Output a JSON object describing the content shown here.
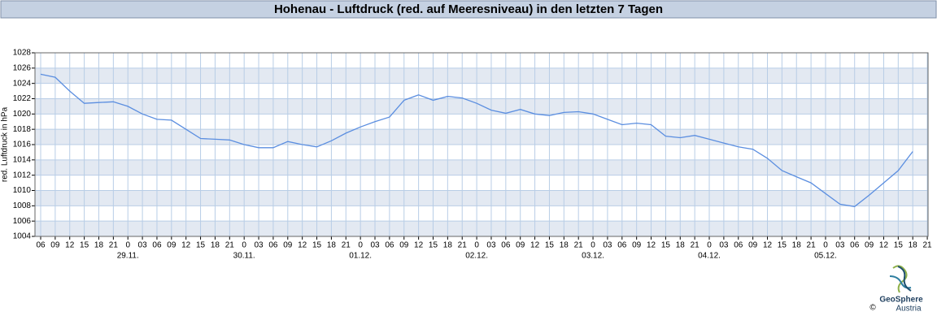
{
  "chart_data": {
    "type": "line",
    "title": "Hohenau - Luftdruck (red. auf Meeresniveau) in den letzten 7 Tagen",
    "y_label": "red. Luftdruck in hPa",
    "categories": [
      "06",
      "09",
      "12",
      "15",
      "18",
      "21",
      "0",
      "03",
      "06",
      "09",
      "12",
      "15",
      "18",
      "21",
      "0",
      "03",
      "06",
      "09",
      "12",
      "15",
      "18",
      "21",
      "0",
      "03",
      "06",
      "09",
      "12",
      "15",
      "18",
      "21",
      "0",
      "03",
      "06",
      "09",
      "12",
      "15",
      "18",
      "21",
      "0",
      "03",
      "06",
      "09",
      "12",
      "15",
      "18",
      "21",
      "0",
      "03",
      "06",
      "09",
      "12",
      "15",
      "18",
      "21",
      "0",
      "03",
      "06",
      "09",
      "12",
      "15",
      "18",
      "21"
    ],
    "dates": [
      "29.11.",
      "30.11.",
      "01.12.",
      "02.12.",
      "03.12.",
      "04.12.",
      "05.12."
    ],
    "series": [
      {
        "name": "Luftdruck",
        "color": "#5b8ee0",
        "values": [
          1025.2,
          1024.8,
          1023,
          1021.4,
          1021.5,
          1021.6,
          1021,
          1020,
          1019.3,
          1019.2,
          1018,
          1016.8,
          1016.7,
          1016.6,
          1016,
          1015.6,
          1015.6,
          1016.4,
          1016,
          1015.7,
          1016.5,
          1017.5,
          1018.3,
          1019,
          1019.6,
          1021.8,
          1022.5,
          1021.8,
          1022.3,
          1022.1,
          1021.4,
          1020.5,
          1020.1,
          1020.6,
          1020,
          1019.8,
          1020.2,
          1020.3,
          1020,
          1019.3,
          1018.6,
          1018.8,
          1018.6,
          1017.1,
          1016.9,
          1017.2,
          1016.7,
          1016.2,
          1015.7,
          1015.4,
          1014.2,
          1012.6,
          1011.8,
          1011,
          1009.6,
          1008.2,
          1007.9,
          1009.4,
          1011,
          1012.6,
          1015.1,
          null
        ]
      }
    ],
    "ylim": [
      1004,
      1028
    ],
    "yticks": [
      1004,
      1006,
      1008,
      1010,
      1012,
      1014,
      1016,
      1018,
      1020,
      1022,
      1024,
      1026,
      1028
    ],
    "grid": true
  },
  "footer": {
    "copyright": "©",
    "brand": "GeoSphere",
    "sub": "Austria"
  }
}
